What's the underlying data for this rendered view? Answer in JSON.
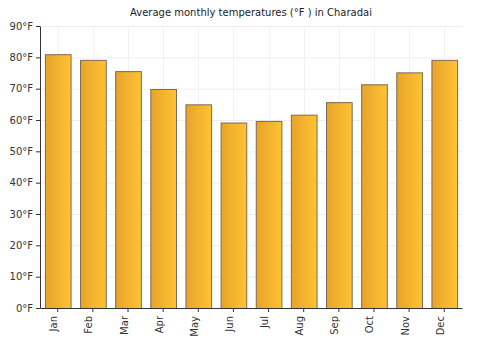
{
  "chart_data": {
    "type": "bar",
    "title": "Average monthly temperatures (°F ) in Charadai",
    "categories": [
      "Jan",
      "Feb",
      "Mar",
      "Apr",
      "May",
      "Jun",
      "Jul",
      "Aug",
      "Sep",
      "Oct",
      "Nov",
      "Dec"
    ],
    "values": [
      81,
      79.2,
      75.6,
      69.9,
      65,
      59.2,
      59.7,
      61.7,
      65.7,
      71.4,
      75.2,
      79.2
    ],
    "color": "#fdb22f",
    "ylim": [
      0,
      90
    ],
    "yticks": [
      {
        "value": 0,
        "label": "0°F"
      },
      {
        "value": 10,
        "label": "10°F"
      },
      {
        "value": 20,
        "label": "20°F"
      },
      {
        "value": 30,
        "label": "30°F"
      },
      {
        "value": 40,
        "label": "40°F"
      },
      {
        "value": 50,
        "label": "50°F"
      },
      {
        "value": 60,
        "label": "60°F"
      },
      {
        "value": 70,
        "label": "70°F"
      },
      {
        "value": 80,
        "label": "80°F"
      },
      {
        "value": 90,
        "label": "90°F"
      }
    ],
    "grid": true
  }
}
